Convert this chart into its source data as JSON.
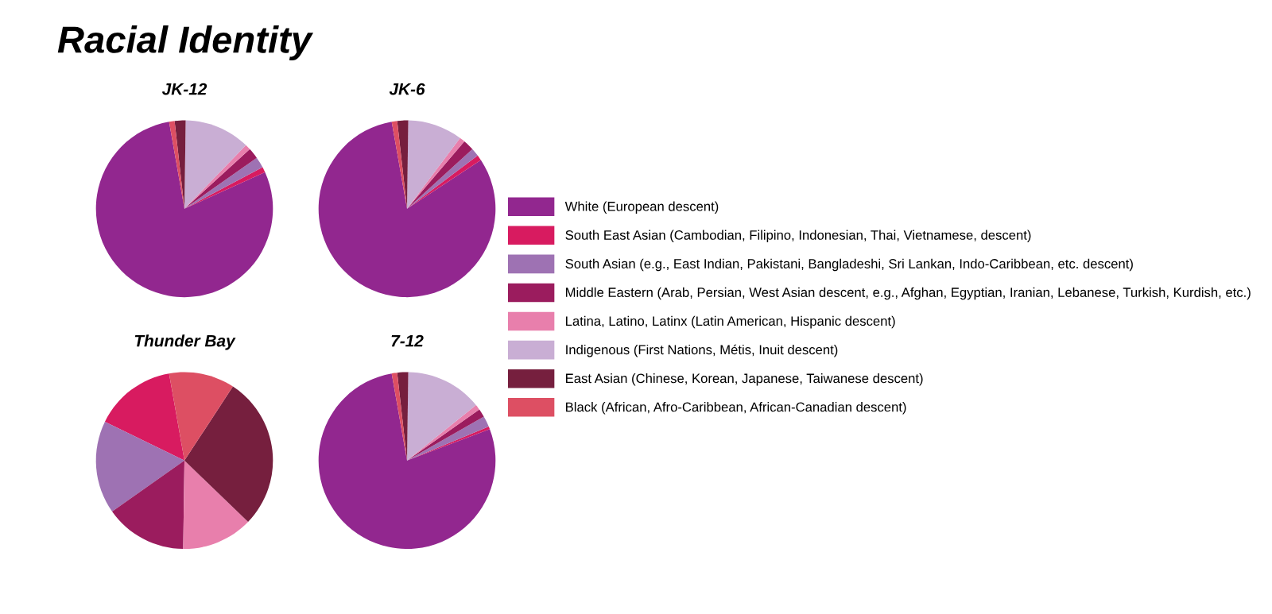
{
  "chart_data": [
    {
      "type": "pie",
      "title": "Racial Identity",
      "subtitle": "JK-12",
      "legend": "right",
      "categories": [
        "White (European descent)",
        "South East Asian (Cambodian, Filipino, Indonesian, Thai, Vietnamese, descent)",
        "South Asian (e.g., East Indian, Pakistani, Bangladeshi, Sri Lankan, Indo-Caribbean, etc. descent)",
        "Middle Eastern (Arab, Persian, West Asian descent, e.g., Afghan, Egyptian, Iranian, Lebanese, Turkish, Kurdish, etc.)",
        "Latina, Latino, Latinx (Latin American, Hispanic descent)",
        "Indigenous (First Nations, Métis, Inuit descent)",
        "East Asian (Chinese, Korean, Japanese, Taiwanese descent)",
        "Black (African, Afro-Caribbean, African-Canadian descent)"
      ],
      "values": [
        79,
        1,
        2,
        2,
        1,
        12,
        2,
        1
      ],
      "colors": [
        "#92278f",
        "#d81b60",
        "#9e72b3",
        "#9b1c5e",
        "#e87fac",
        "#c9aed4",
        "#761f3e",
        "#dd4f63"
      ]
    },
    {
      "type": "pie",
      "title": "JK-6",
      "categories": [
        null,
        null,
        null,
        null,
        null,
        null,
        null,
        null
      ],
      "values": [
        81.5,
        1,
        1.5,
        2,
        1,
        10,
        2,
        1
      ],
      "colors": [
        "#92278f",
        "#d81b60",
        "#9e72b3",
        "#9b1c5e",
        "#e87fac",
        "#c9aed4",
        "#761f3e",
        "#dd4f63"
      ]
    },
    {
      "type": "pie",
      "title": "Thunder Bay",
      "categories": [
        null,
        null,
        null,
        null,
        null,
        null,
        null,
        null
      ],
      "values": [
        0,
        15,
        17,
        15,
        13,
        0,
        28,
        12
      ],
      "colors": [
        "#92278f",
        "#d81b60",
        "#9e72b3",
        "#9b1c5e",
        "#e87fac",
        "#c9aed4",
        "#761f3e",
        "#dd4f63"
      ]
    },
    {
      "type": "pie",
      "title": "7-12",
      "categories": [
        null,
        null,
        null,
        null,
        null,
        null,
        null,
        null
      ],
      "values": [
        78,
        0.5,
        2,
        1.5,
        1,
        14,
        2,
        1
      ],
      "colors": [
        "#92278f",
        "#d81b60",
        "#9e72b3",
        "#9b1c5e",
        "#e87fac",
        "#c9aed4",
        "#761f3e",
        "#dd4f63"
      ]
    }
  ]
}
